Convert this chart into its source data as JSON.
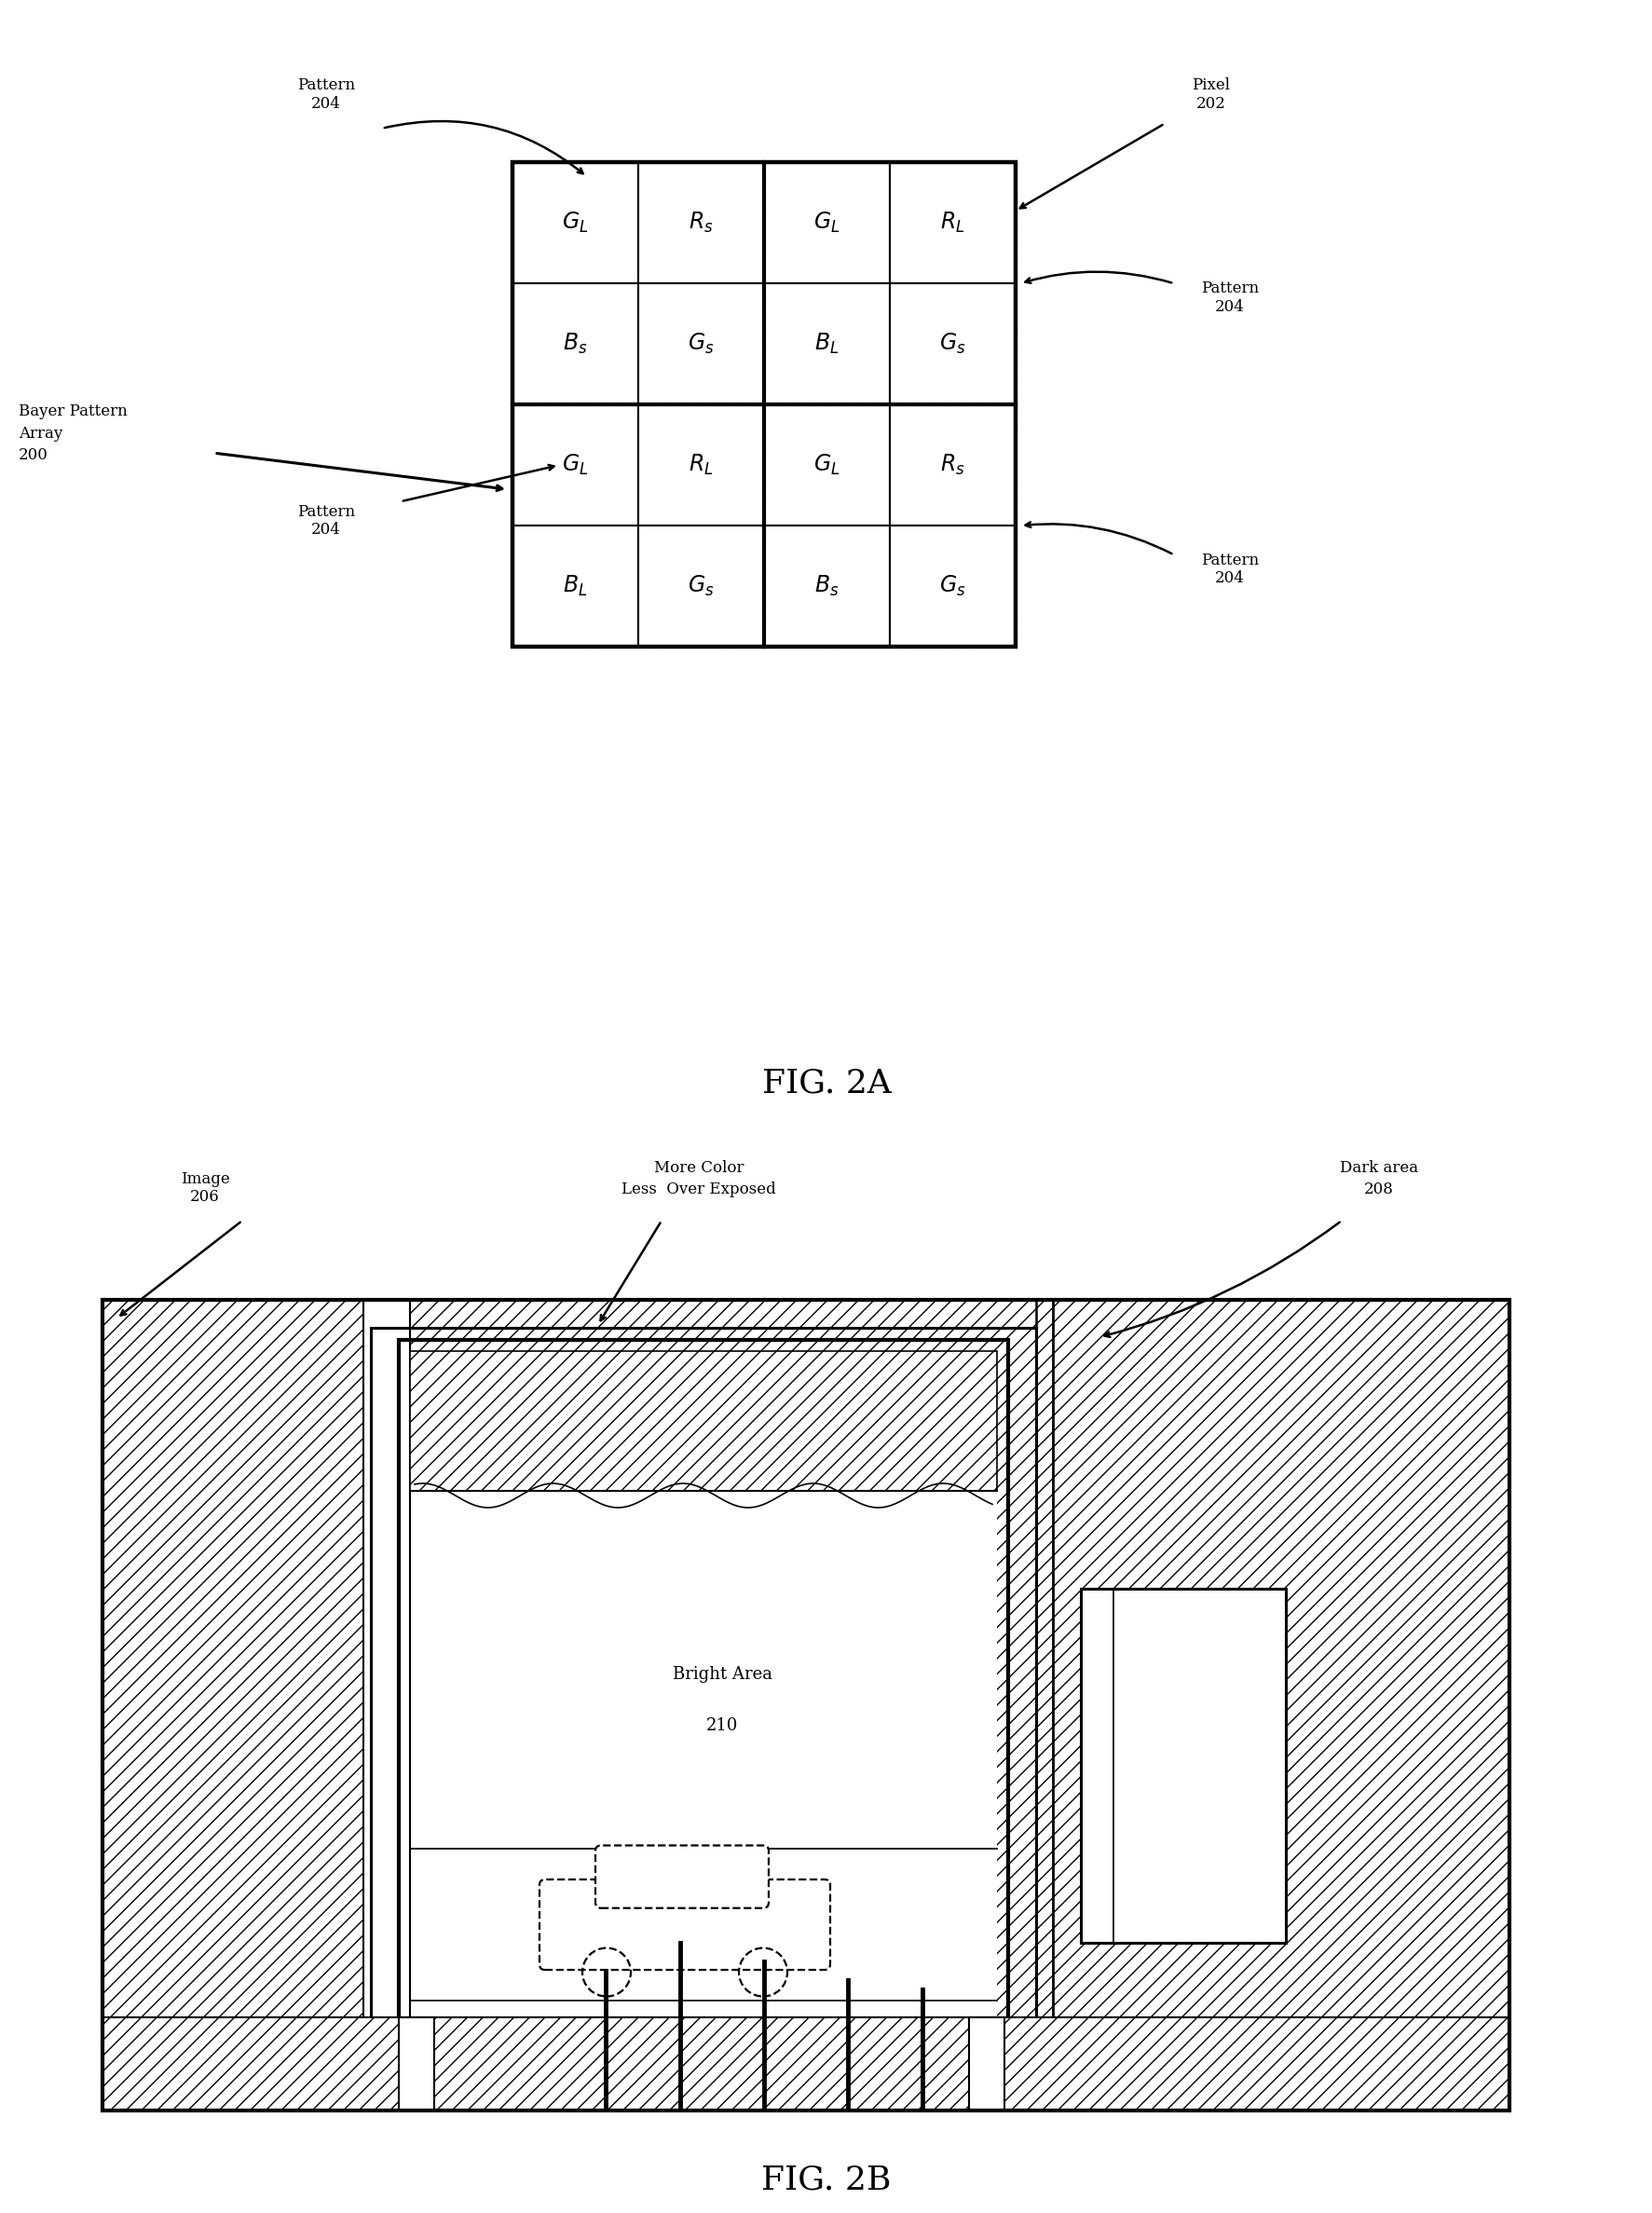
{
  "bg_color": "#ffffff",
  "fig_2a_label": "FIG. 2A",
  "fig_2b_label": "FIG. 2B",
  "grid_cells": [
    [
      "G_L",
      "R_S",
      "G_L",
      "R_L"
    ],
    [
      "B_S",
      "G_S",
      "B_L",
      "G_S"
    ],
    [
      "G_L",
      "R_L",
      "G_L",
      "R_S"
    ],
    [
      "B_L",
      "G_S",
      "B_S",
      "G_S"
    ]
  ],
  "cell_labels": {
    "G_L": "$G_L$",
    "G_S": "$G_s$",
    "R_S": "$R_s$",
    "R_L": "$R_L$",
    "B_S": "$B_s$",
    "B_L": "$B_L$"
  },
  "bayer_label": "Bayer Pattern\nArray\n200",
  "pattern204": "Pattern\n204",
  "pixel202": "Pixel\n202",
  "image206": "Image\n206",
  "more_color": "More Color\nLess  Over Exposed",
  "dark_area": "Dark area\n208",
  "bright_area": "Bright Area\n210"
}
